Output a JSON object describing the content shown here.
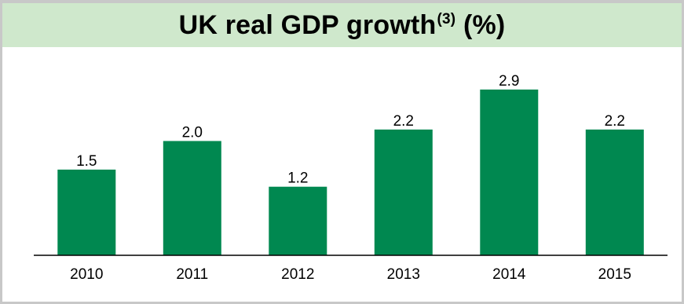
{
  "header": {
    "title_main": "UK real GDP growth",
    "title_sup": "(3)",
    "title_suffix": " (%)"
  },
  "colors": {
    "bar": "#008850",
    "title_background": "#cfe8cc",
    "frame_border": "#c8c8c8",
    "axis": "#000000"
  },
  "chart_data": {
    "type": "bar",
    "title": "UK real GDP growth(3) (%)",
    "categories": [
      "2010",
      "2011",
      "2012",
      "2013",
      "2014",
      "2015"
    ],
    "values": [
      1.5,
      2.0,
      1.2,
      2.2,
      2.9,
      2.2
    ],
    "data_labels": [
      "1.5",
      "2.0",
      "1.2",
      "2.2",
      "2.9",
      "2.2"
    ],
    "xlabel": "",
    "ylabel": "",
    "ylim": [
      0,
      2.9
    ],
    "grid": false,
    "legend": "none",
    "y_axis_visible": false
  }
}
